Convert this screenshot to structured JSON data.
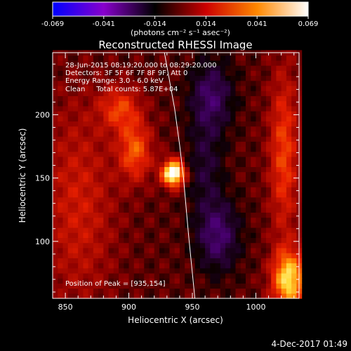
{
  "chart_data": {
    "type": "heatmap",
    "title": "Reconstructed RHESSI Image",
    "xlabel": "Heliocentric X (arcsec)",
    "ylabel": "Heliocentric Y (arcsec)",
    "xlim": [
      840,
      1034
    ],
    "ylim": [
      55,
      249
    ],
    "x_ticks": [
      850,
      900,
      950,
      1000
    ],
    "y_ticks": [
      100,
      150,
      200
    ],
    "colorbar": {
      "colors": [
        "#0000ff",
        "#8800cc",
        "#000000",
        "#cc0000",
        "#ff8800",
        "#ffffff"
      ],
      "range": [
        -0.069,
        0.069
      ],
      "ticks": [
        "-0.069",
        "-0.041",
        "-0.014",
        "0.014",
        "0.041",
        "0.069"
      ],
      "unit_label": "(photons cm⁻² s⁻¹ asec⁻²)"
    },
    "annotations": {
      "time": "28-Jun-2015 08:19:20.000 to 08:29:20.000",
      "detectors": "Detectors: 3F 5F 6F 7F 8F 9F, Att 0",
      "energy": "Energy Range: 3.0 - 6.0 keV",
      "clean": "Clean     Total counts: 5.87E+04",
      "peak": "Position of Peak = [935,154]"
    },
    "peak": {
      "x": 935,
      "y": 154,
      "value": 0.069
    },
    "sources": [
      {
        "x": 935,
        "y": 154,
        "sx": 6,
        "sy": 7,
        "amp": 0.075
      },
      {
        "x": 905,
        "y": 172,
        "sx": 9,
        "sy": 16,
        "amp": 0.032
      },
      {
        "x": 893,
        "y": 205,
        "sx": 11,
        "sy": 12,
        "amp": 0.026
      },
      {
        "x": 1026,
        "y": 70,
        "sx": 9,
        "sy": 16,
        "amp": 0.055
      },
      {
        "x": 1022,
        "y": 170,
        "sx": 8,
        "sy": 45,
        "amp": 0.028
      },
      {
        "x": 860,
        "y": 130,
        "sx": 20,
        "sy": 55,
        "amp": 0.018
      },
      {
        "x": 965,
        "y": 215,
        "sx": 12,
        "sy": 20,
        "amp": -0.026
      },
      {
        "x": 970,
        "y": 105,
        "sx": 12,
        "sy": 20,
        "amp": -0.028
      },
      {
        "x": 960,
        "y": 160,
        "sx": 10,
        "sy": 25,
        "amp": -0.016
      }
    ],
    "limb": [
      [
        928,
        249
      ],
      [
        936,
        205
      ],
      [
        940,
        176
      ],
      [
        943,
        150
      ],
      [
        947,
        105
      ],
      [
        952,
        55
      ]
    ]
  },
  "footer": {
    "date": "4-Dec-2017 01:49"
  }
}
